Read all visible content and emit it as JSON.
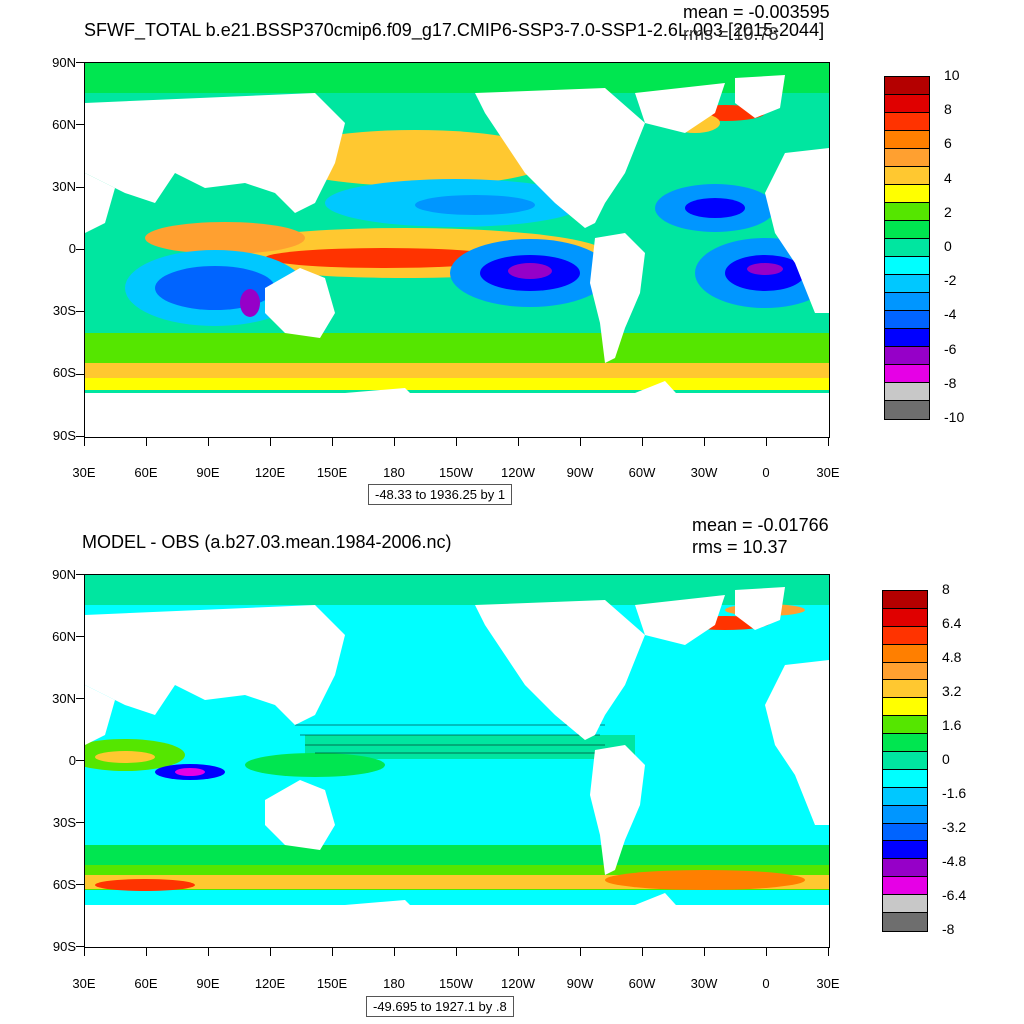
{
  "top": {
    "title": "SFWF_TOTAL b.e21.BSSP370cmip6.f09_g17.CMIP6-SSP3-7.0-SSP1-2.6L.003 [2015-2044]",
    "mean": "mean = -0.003595",
    "rms": "rms = 10.78",
    "range": "-48.33 to 1936.25 by 1",
    "colorbar_labels": [
      "10",
      "8",
      "6",
      "4",
      "2",
      "0",
      "-2",
      "-4",
      "-6",
      "-8",
      "-10"
    ],
    "colorbar_colors": [
      "#b40000",
      "#e00000",
      "#ff3300",
      "#ff7f00",
      "#ffa030",
      "#ffc830",
      "#ffff00",
      "#55e600",
      "#00e650",
      "#00e6a0",
      "#00ffff",
      "#00c8ff",
      "#0096ff",
      "#0064ff",
      "#0000ff",
      "#9600c8",
      "#e600e6",
      "#c8c8c8",
      "#6e6e6e"
    ]
  },
  "bottom": {
    "title": "MODEL - OBS (a.b27.03.mean.1984-2006.nc)",
    "mean": "mean = -0.01766",
    "rms": "rms = 10.37",
    "range": "-49.695 to 1927.1 by .8",
    "colorbar_labels": [
      "8",
      "6.4",
      "4.8",
      "3.2",
      "1.6",
      "0",
      "-1.6",
      "-3.2",
      "-4.8",
      "-6.4",
      "-8"
    ],
    "colorbar_colors": [
      "#b40000",
      "#e00000",
      "#ff3300",
      "#ff7f00",
      "#ffa030",
      "#ffc830",
      "#ffff00",
      "#55e600",
      "#00e650",
      "#00e6a0",
      "#00ffff",
      "#00c8ff",
      "#0096ff",
      "#0064ff",
      "#0000ff",
      "#9600c8",
      "#e600e6",
      "#c8c8c8",
      "#6e6e6e"
    ]
  },
  "axes": {
    "lat_labels": [
      "90N",
      "60N",
      "30N",
      "0",
      "30S",
      "60S",
      "90S"
    ],
    "lon_labels": [
      "30E",
      "60E",
      "90E",
      "120E",
      "150E",
      "180",
      "150W",
      "120W",
      "90W",
      "60W",
      "30W",
      "0",
      "30E"
    ]
  },
  "colors": {
    "land": "#ffffff",
    "ocean_base": "#00e6a0"
  }
}
